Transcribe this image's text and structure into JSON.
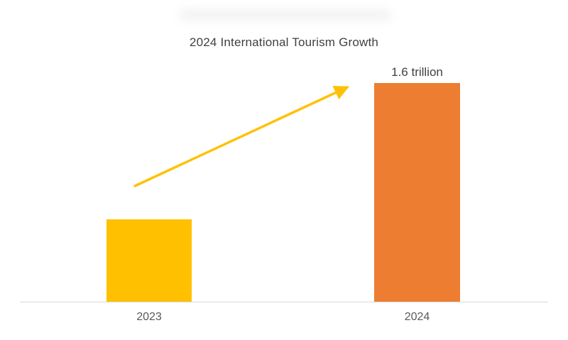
{
  "chart_data": {
    "type": "bar",
    "title": "2024 International Tourism Growth",
    "categories": [
      "2023",
      "2024"
    ],
    "values": [
      0.6,
      1.6
    ],
    "unit": "trillion",
    "value_labels": [
      "",
      "1.6 trillion"
    ],
    "series_colors": [
      "#FFC000",
      "#ED7D31"
    ],
    "annotations": [
      {
        "type": "arrow",
        "direction": "up-right",
        "color": "#FFC107"
      }
    ],
    "xlabel": "",
    "ylabel": "",
    "ylim": [
      0,
      1.75
    ],
    "grid": false,
    "legend": false,
    "axis_line_color": "#D9D9D9"
  }
}
